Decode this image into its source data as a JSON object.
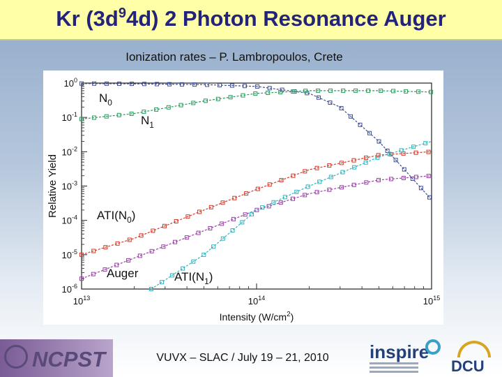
{
  "slide": {
    "title_main": "Kr (3d",
    "title_sup": "9",
    "title_rest": "4d) 2 Photon Resonance Auger",
    "subtitle": "Ionization rates – P. Lambropoulos, Crete",
    "footer": "VUVX – SLAC / July 19 – 21, 2010",
    "logos": {
      "left": "NCPST",
      "right_1": "inspire",
      "right_2": "DCU"
    }
  },
  "chart_data": {
    "type": "line",
    "xscale": "log",
    "yscale": "log",
    "xlim": [
      10000000000000.0,
      1000000000000000.0
    ],
    "ylim": [
      1e-06,
      1
    ],
    "xlabel": "Intensity (W/cm",
    "xlabel_sup": "2",
    "xlabel_end": ")",
    "ylabel": "Relative Yield",
    "x_ticks": [
      {
        "base": "10",
        "exp": "13",
        "value": 10000000000000.0
      },
      {
        "base": "10",
        "exp": "14",
        "value": 100000000000000.0
      },
      {
        "base": "10",
        "exp": "15",
        "value": 1000000000000000.0
      }
    ],
    "y_ticks": [
      {
        "base": "10",
        "exp": "0",
        "value": 1
      },
      {
        "base": "10",
        "exp": "-1",
        "value": 0.1
      },
      {
        "base": "10",
        "exp": "-2",
        "value": 0.01
      },
      {
        "base": "10",
        "exp": "-3",
        "value": 0.001
      },
      {
        "base": "10",
        "exp": "-4",
        "value": 0.0001
      },
      {
        "base": "10",
        "exp": "-5",
        "value": 1e-05
      },
      {
        "base": "10",
        "exp": "-6",
        "value": 1e-06
      }
    ],
    "series": [
      {
        "label_text": "N",
        "label_sub": "0",
        "color": "#3f4f96",
        "x": [
          10000000000000.0,
          20000000000000.0,
          50000000000000.0,
          100000000000000.0,
          200000000000000.0,
          300000000000000.0,
          500000000000000.0,
          700000000000000.0,
          1000000000000000.0
        ],
        "y": [
          0.97,
          0.95,
          0.9,
          0.8,
          0.5,
          0.2,
          0.02,
          0.003,
          0.0004
        ]
      },
      {
        "label_text": "N",
        "label_sub": "1",
        "color": "#2a9a5c",
        "x": [
          10000000000000.0,
          20000000000000.0,
          50000000000000.0,
          100000000000000.0,
          200000000000000.0,
          500000000000000.0,
          1000000000000000.0
        ],
        "y": [
          0.09,
          0.13,
          0.3,
          0.5,
          0.6,
          0.6,
          0.55
        ]
      },
      {
        "label_text": "ATI(N",
        "label_sub": "0",
        "label_end": ")",
        "color": "#d23a2a",
        "x": [
          10000000000000.0,
          20000000000000.0,
          50000000000000.0,
          100000000000000.0,
          200000000000000.0,
          500000000000000.0,
          1000000000000000.0
        ],
        "y": [
          1e-05,
          3e-05,
          0.0002,
          0.0008,
          0.003,
          0.008,
          0.01
        ]
      },
      {
        "label_text": "Auger",
        "color": "#9a3fa6",
        "x": [
          10000000000000.0,
          20000000000000.0,
          50000000000000.0,
          100000000000000.0,
          200000000000000.0,
          500000000000000.0,
          1000000000000000.0
        ],
        "y": [
          2e-06,
          8e-06,
          5e-05,
          0.0002,
          0.0006,
          0.0015,
          0.002
        ]
      },
      {
        "label_text": "ATI(N",
        "label_sub": "1",
        "label_end": ")",
        "color": "#2fb4c2",
        "x": [
          25000000000000.0,
          50000000000000.0,
          100000000000000.0,
          200000000000000.0,
          500000000000000.0,
          1000000000000000.0
        ],
        "y": [
          1e-06,
          1e-05,
          0.0002,
          0.001,
          0.007,
          0.02
        ]
      }
    ]
  }
}
